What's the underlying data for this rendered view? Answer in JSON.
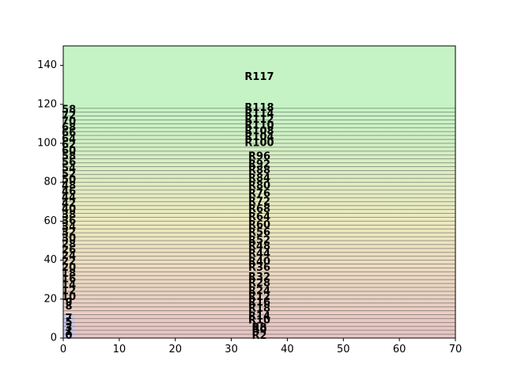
{
  "chart_data": {
    "type": "area",
    "xlim": [
      0,
      70
    ],
    "ylim": [
      0,
      150
    ],
    "x_ticks": [
      0,
      10,
      20,
      30,
      40,
      50,
      60,
      70
    ],
    "y_ticks": [
      0,
      20,
      40,
      60,
      80,
      100,
      120,
      140
    ],
    "top_region": {
      "label": "R117",
      "y_from": 118,
      "y_to": 150,
      "color": "#c6f3c6",
      "label_x": 35,
      "label_y": 134
    },
    "band_boundaries": [
      2,
      4,
      6,
      8,
      10,
      12,
      14,
      16,
      18,
      20,
      22,
      24,
      26,
      28,
      30,
      32,
      34,
      36,
      38,
      40,
      42,
      44,
      46,
      48,
      50,
      52,
      54,
      56,
      58,
      60,
      62,
      64,
      66,
      68,
      70,
      72,
      74,
      76,
      78,
      80,
      82,
      84,
      86,
      88,
      90,
      92,
      94,
      96,
      98,
      100,
      102,
      104,
      106,
      108,
      110,
      112,
      114,
      116,
      118
    ],
    "gradient_colors": {
      "bottom": "#e8c4c4",
      "middle": "#eeeac0",
      "top": "#c6f3c6"
    },
    "left_strip": {
      "x_from": 0,
      "x_to": 2,
      "y_from": 0,
      "y_to": 12,
      "color": "#c8c8ee"
    },
    "center_labels": [
      {
        "text": "R2",
        "y": 1
      },
      {
        "text": "R8",
        "y": 5
      },
      {
        "text": "R0",
        "y": 4
      },
      {
        "text": "R10",
        "y": 9
      },
      {
        "text": "R14",
        "y": 11
      },
      {
        "text": "R18",
        "y": 15
      },
      {
        "text": "R16",
        "y": 18
      },
      {
        "text": "R12",
        "y": 21
      },
      {
        "text": "R24",
        "y": 24
      },
      {
        "text": "R28",
        "y": 28
      },
      {
        "text": "R32",
        "y": 31
      },
      {
        "text": "R36",
        "y": 36
      },
      {
        "text": "R40",
        "y": 39
      },
      {
        "text": "R44",
        "y": 43
      },
      {
        "text": "R48",
        "y": 47
      },
      {
        "text": "R52",
        "y": 50
      },
      {
        "text": "R56",
        "y": 54
      },
      {
        "text": "R60",
        "y": 58
      },
      {
        "text": "R64",
        "y": 62
      },
      {
        "text": "R68",
        "y": 66
      },
      {
        "text": "R72",
        "y": 70
      },
      {
        "text": "R76",
        "y": 74
      },
      {
        "text": "R80",
        "y": 78
      },
      {
        "text": "R84",
        "y": 82
      },
      {
        "text": "R88",
        "y": 86
      },
      {
        "text": "R92",
        "y": 89
      },
      {
        "text": "R96",
        "y": 93
      },
      {
        "text": "R100",
        "y": 100
      },
      {
        "text": "R104",
        "y": 103
      },
      {
        "text": "R108",
        "y": 106
      },
      {
        "text": "R110",
        "y": 109
      },
      {
        "text": "R112",
        "y": 112
      },
      {
        "text": "R114",
        "y": 115
      },
      {
        "text": "R118",
        "y": 118
      }
    ],
    "left_labels": [
      {
        "text": "0",
        "y": 1
      },
      {
        "text": "1",
        "y": 3
      },
      {
        "text": "3",
        "y": 5
      },
      {
        "text": "5",
        "y": 8
      },
      {
        "text": "7",
        "y": 10
      },
      {
        "text": "8",
        "y": 16
      },
      {
        "text": "9",
        "y": 18
      },
      {
        "text": "10",
        "y": 21
      },
      {
        "text": "12",
        "y": 24
      },
      {
        "text": "14",
        "y": 27
      },
      {
        "text": "16",
        "y": 30
      },
      {
        "text": "18",
        "y": 33
      },
      {
        "text": "20",
        "y": 36
      },
      {
        "text": "22",
        "y": 39
      },
      {
        "text": "24",
        "y": 42
      },
      {
        "text": "26",
        "y": 45
      },
      {
        "text": "28",
        "y": 48
      },
      {
        "text": "30",
        "y": 51
      },
      {
        "text": "32",
        "y": 54
      },
      {
        "text": "34",
        "y": 57
      },
      {
        "text": "36",
        "y": 60
      },
      {
        "text": "38",
        "y": 63
      },
      {
        "text": "40",
        "y": 66
      },
      {
        "text": "42",
        "y": 69
      },
      {
        "text": "44",
        "y": 72
      },
      {
        "text": "46",
        "y": 75
      },
      {
        "text": "48",
        "y": 78
      },
      {
        "text": "50",
        "y": 81
      },
      {
        "text": "52",
        "y": 84
      },
      {
        "text": "54",
        "y": 87
      },
      {
        "text": "56",
        "y": 90
      },
      {
        "text": "58",
        "y": 93
      },
      {
        "text": "60",
        "y": 96
      },
      {
        "text": "62",
        "y": 99
      },
      {
        "text": "64",
        "y": 102
      },
      {
        "text": "66",
        "y": 105
      },
      {
        "text": "68",
        "y": 108
      },
      {
        "text": "70",
        "y": 111
      },
      {
        "text": "72",
        "y": 114
      },
      {
        "text": "58",
        "y": 117
      }
    ]
  }
}
